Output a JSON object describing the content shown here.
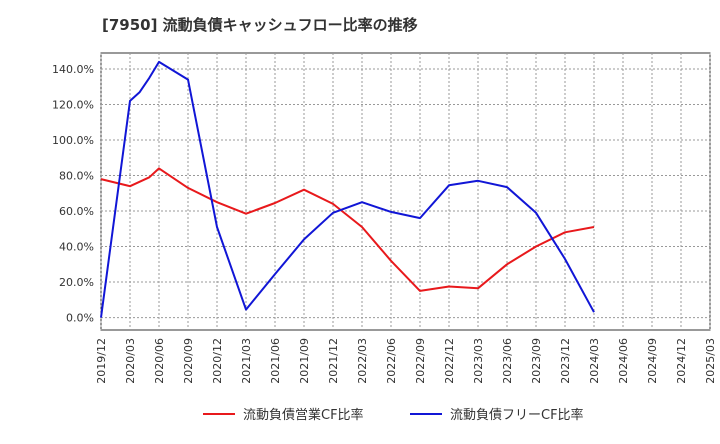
{
  "title": "[7950]  流動負債キャッシュフロー比率の推移",
  "chart_data": {
    "type": "line",
    "title": "[7950]  流動負債キャッシュフロー比率の推移",
    "x": [
      "2019/12",
      "2020/03",
      "2020/06",
      "2020/09",
      "2020/12",
      "2021/03",
      "2021/06",
      "2021/09",
      "2021/12",
      "2022/03",
      "2022/06",
      "2022/09",
      "2022/12",
      "2023/03",
      "2023/06",
      "2023/09",
      "2023/12",
      "2024/03",
      "2024/06",
      "2024/09",
      "2024/12",
      "2025/03"
    ],
    "y_ticks": [
      "0.0%",
      "20.0%",
      "40.0%",
      "60.0%",
      "80.0%",
      "100.0%",
      "120.0%",
      "140.0%"
    ],
    "ylim": [
      -7,
      149
    ],
    "grid": true,
    "legend_position": "bottom",
    "series": [
      {
        "name": "流動負債営業CF比率",
        "color": "#e8191c",
        "points": [
          {
            "x": "2019/12",
            "y": 78
          },
          {
            "x": "2020/03",
            "y": 74
          },
          {
            "x": "2020/05",
            "y": 79
          },
          {
            "x": "2020/06",
            "y": 84
          },
          {
            "x": "2020/09",
            "y": 73
          },
          {
            "x": "2020/12",
            "y": 65
          },
          {
            "x": "2021/03",
            "y": 58.5
          },
          {
            "x": "2021/06",
            "y": 64.5
          },
          {
            "x": "2021/09",
            "y": 72
          },
          {
            "x": "2021/12",
            "y": 64
          },
          {
            "x": "2022/03",
            "y": 51
          },
          {
            "x": "2022/06",
            "y": 32
          },
          {
            "x": "2022/09",
            "y": 15
          },
          {
            "x": "2022/12",
            "y": 17.5
          },
          {
            "x": "2023/03",
            "y": 16.5
          },
          {
            "x": "2023/06",
            "y": 30
          },
          {
            "x": "2023/09",
            "y": 40
          },
          {
            "x": "2023/12",
            "y": 48
          },
          {
            "x": "2024/03",
            "y": 51
          }
        ]
      },
      {
        "name": "流動負債フリーCF比率",
        "color": "#1116d6",
        "points": [
          {
            "x": "2019/12",
            "y": 0
          },
          {
            "x": "2020/03",
            "y": 122
          },
          {
            "x": "2020/04",
            "y": 127
          },
          {
            "x": "2020/05",
            "y": 135
          },
          {
            "x": "2020/06",
            "y": 144
          },
          {
            "x": "2020/09",
            "y": 134
          },
          {
            "x": "2020/12",
            "y": 51
          },
          {
            "x": "2021/03",
            "y": 4.5
          },
          {
            "x": "2021/06",
            "y": 24.5
          },
          {
            "x": "2021/09",
            "y": 44
          },
          {
            "x": "2021/12",
            "y": 59
          },
          {
            "x": "2022/03",
            "y": 65
          },
          {
            "x": "2022/06",
            "y": 59.5
          },
          {
            "x": "2022/09",
            "y": 56
          },
          {
            "x": "2022/12",
            "y": 74.5
          },
          {
            "x": "2023/03",
            "y": 77
          },
          {
            "x": "2023/06",
            "y": 73.5
          },
          {
            "x": "2023/09",
            "y": 59
          },
          {
            "x": "2023/12",
            "y": 33
          },
          {
            "x": "2024/03",
            "y": 3
          }
        ]
      }
    ]
  }
}
